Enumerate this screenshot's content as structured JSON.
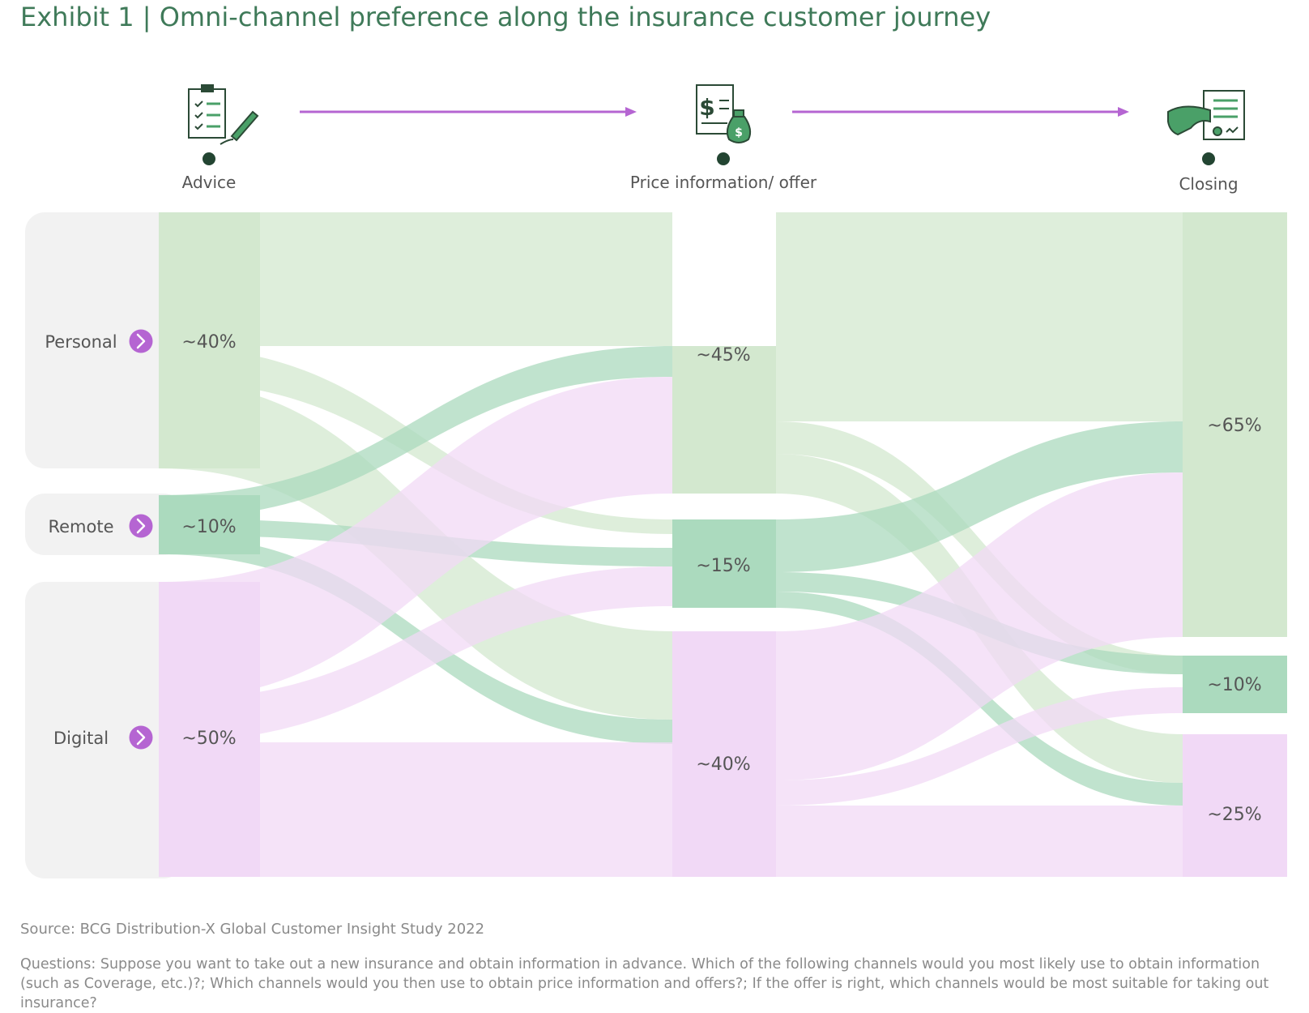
{
  "title": "Exhibit 1 | Omni-channel preference along the insurance customer journey",
  "colors": {
    "personal": "#d3e8cf",
    "remote": "#abdabe",
    "digital": "#f1d9f6",
    "accent": "#b565d2",
    "title": "#3f7a59",
    "icon": "#4aa068"
  },
  "stages": [
    {
      "label": "Advice",
      "icon": "clipboard-checklist-pen-icon"
    },
    {
      "label": "Price information/ offer",
      "icon": "invoice-money-bag-icon"
    },
    {
      "label": "Closing",
      "icon": "handshake-contract-icon"
    }
  ],
  "channels": [
    {
      "name": "Personal"
    },
    {
      "name": "Remote"
    },
    {
      "name": "Digital"
    }
  ],
  "chart_data": {
    "type": "sankey",
    "stages": [
      "Advice",
      "Price information/ offer",
      "Closing"
    ],
    "nodes": {
      "Advice": {
        "Personal": "~40%",
        "Remote": "~10%",
        "Digital": "~50%"
      },
      "Price information/ offer": {
        "Personal": "~45%",
        "Remote": "~15%",
        "Digital": "~40%"
      },
      "Closing": {
        "Personal": "~65%",
        "Remote": "~10%",
        "Digital": "~25%"
      }
    }
  },
  "source": "Source: BCG Distribution-X Global Customer Insight Study 2022",
  "questions": "Questions: Suppose you want to take out a new insurance and obtain information in advance. Which of the following channels would you most likely use to obtain information (such as Coverage, etc.)?; Which channels would you then use to obtain price information and offers?; If the offer is right, which channels would be most suitable for taking out insurance?"
}
